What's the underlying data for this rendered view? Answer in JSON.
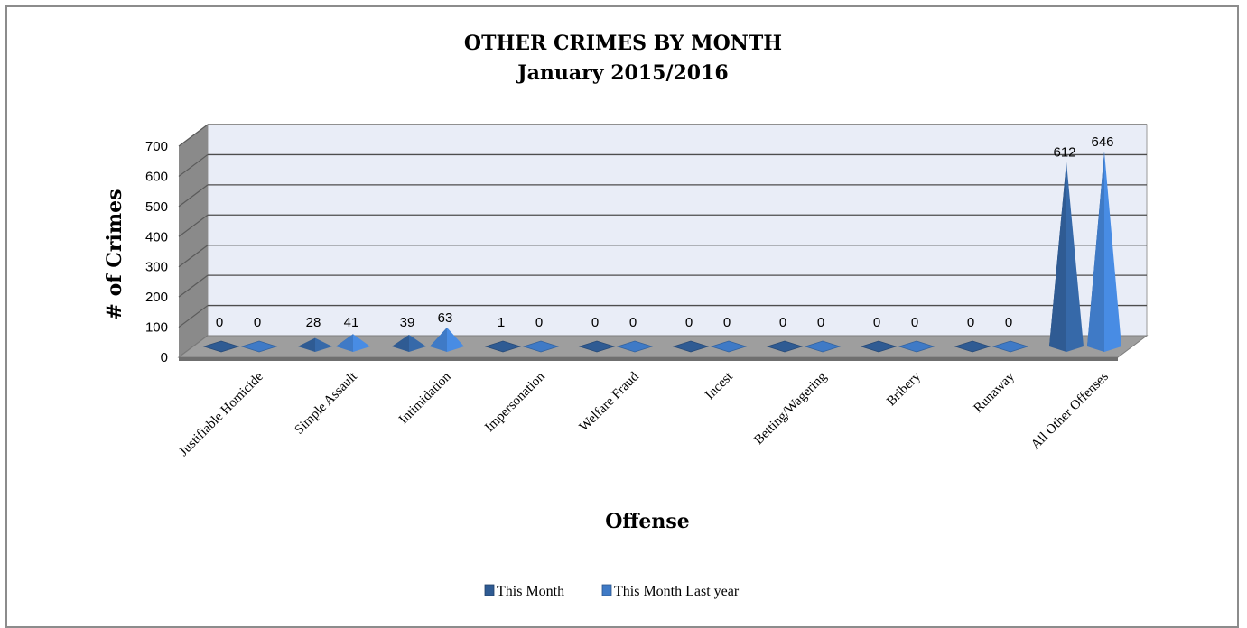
{
  "chart_data": {
    "type": "bar",
    "title": "OTHER CRIMES BY MONTH",
    "subtitle": "January 2015/2016",
    "xlabel": "Offense",
    "ylabel": "# of Crimes",
    "ylim": [
      0,
      700
    ],
    "yticks": [
      "0",
      "100",
      "200",
      "300",
      "400",
      "500",
      "600",
      "700"
    ],
    "grid": true,
    "legend_position": "bottom",
    "categories": [
      "Justifiable Homicide",
      "Simple Assault",
      "Intimidation",
      "Impersonation",
      "Welfare Fraud",
      "Incest",
      "Betting/Wagering",
      "Bribery",
      "Runaway",
      "All Other Offenses"
    ],
    "series": [
      {
        "name": "This Month",
        "values": [
          0,
          28,
          39,
          1,
          0,
          0,
          0,
          0,
          0,
          612
        ],
        "color": "#2f5b93"
      },
      {
        "name": "This Month Last year",
        "values": [
          0,
          41,
          63,
          0,
          0,
          0,
          0,
          0,
          0,
          646
        ],
        "color": "#3f7ac6"
      }
    ],
    "colors": {
      "plot_background": "#e9edf7",
      "wall_side": "#8a8a8a",
      "floor": "#9e9e9e",
      "gridline": "#4d4d4d"
    }
  }
}
